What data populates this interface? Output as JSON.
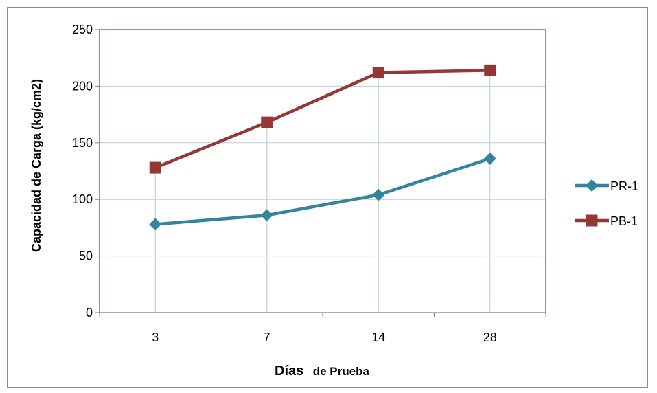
{
  "chart_data": {
    "type": "line",
    "categories": [
      "3",
      "7",
      "14",
      "28"
    ],
    "series": [
      {
        "name": "PR-1",
        "values": [
          78,
          86,
          104,
          136
        ],
        "color": "#31859C",
        "marker": "diamond"
      },
      {
        "name": "PB-1",
        "values": [
          128,
          168,
          212,
          214
        ],
        "color": "#953735",
        "marker": "square"
      }
    ],
    "xlabel": {
      "main": "Días",
      "rest": "de Prueba"
    },
    "ylabel": "Capacidad de Carga   (kg/cm2)",
    "ylim": [
      0,
      250
    ],
    "yticks": [
      0,
      50,
      100,
      150,
      200,
      250
    ],
    "grid": "horizontal major, vertical drop lines",
    "legend": "right",
    "gridline_color": "#b8cce4",
    "plot_border_color": "#953735"
  }
}
